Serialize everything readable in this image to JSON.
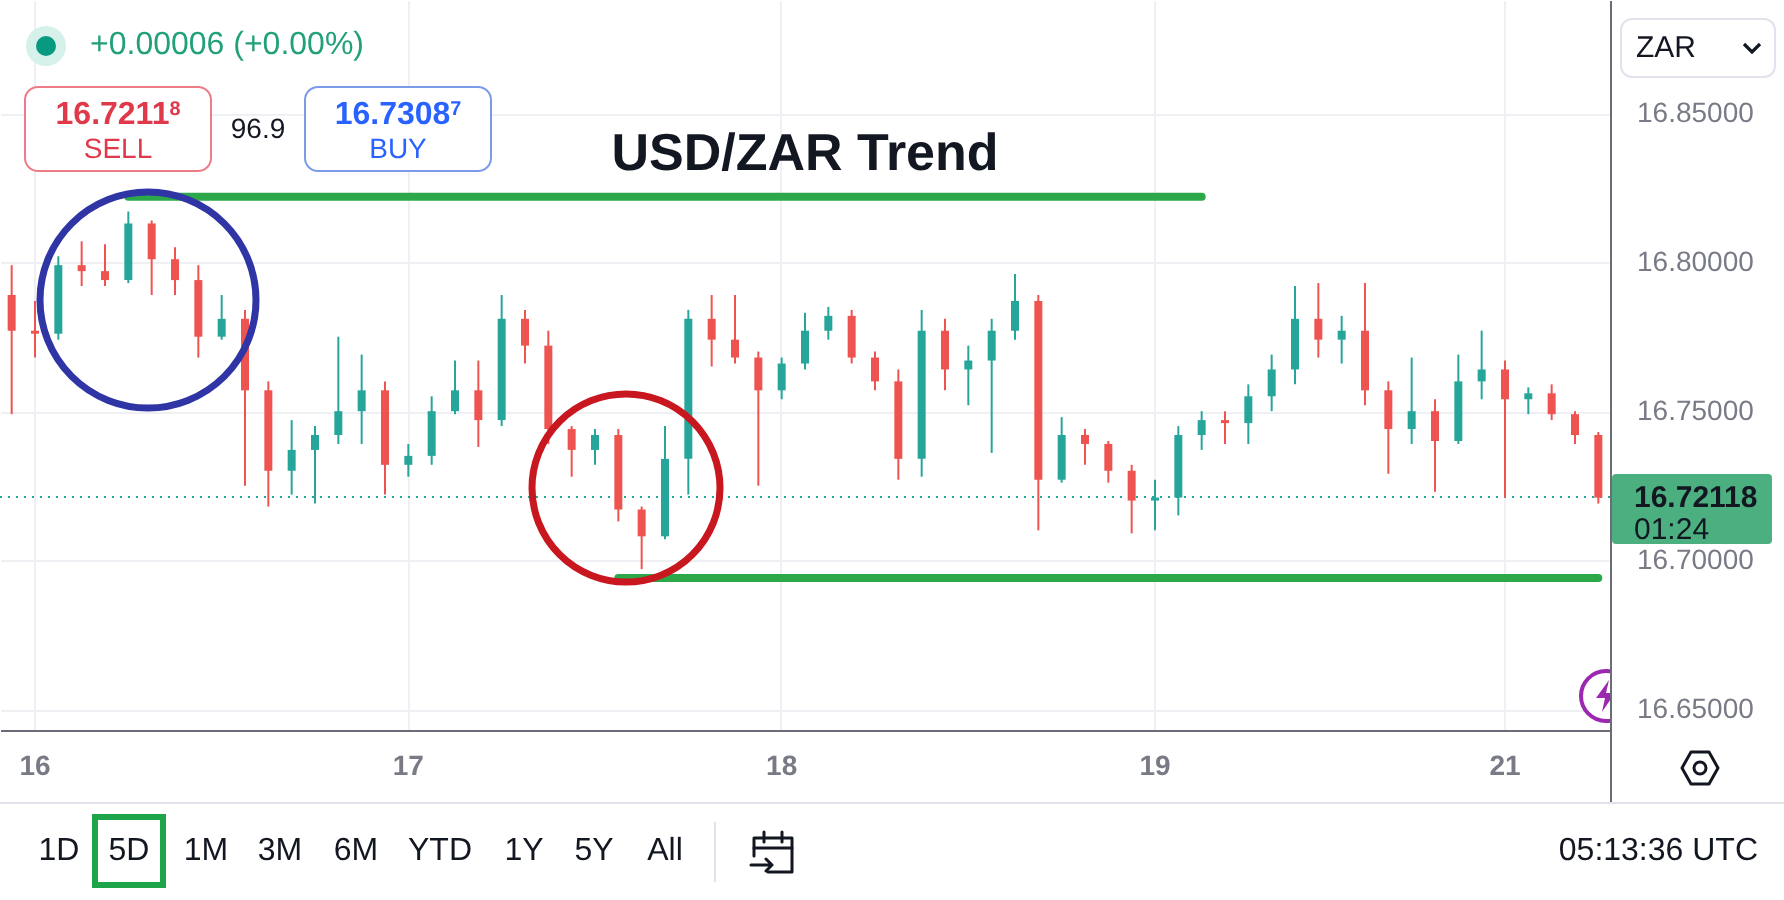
{
  "chart_data": {
    "type": "candlestick",
    "title": "USD/ZAR Trend",
    "categories": [
      null,
      "16",
      null,
      null,
      null,
      null,
      null,
      null,
      null,
      null,
      null,
      null,
      null,
      null,
      null,
      null,
      null,
      "17",
      null,
      null,
      null,
      null,
      null,
      null,
      null,
      null,
      null,
      null,
      null,
      null,
      null,
      null,
      null,
      "18",
      null,
      null,
      null,
      null,
      null,
      null,
      null,
      null,
      null,
      null,
      null,
      null,
      null,
      null,
      null,
      "19",
      null,
      null,
      null,
      null,
      null,
      null,
      null,
      null,
      null,
      null,
      null,
      null,
      null,
      null,
      "21",
      null,
      null,
      null,
      null
    ],
    "ohlc": [
      [
        16.789,
        16.799,
        16.749,
        16.777
      ],
      [
        16.777,
        16.787,
        16.768,
        16.776
      ],
      [
        16.776,
        16.802,
        16.774,
        16.799
      ],
      [
        16.799,
        16.807,
        16.792,
        16.797
      ],
      [
        16.797,
        16.806,
        16.792,
        16.794
      ],
      [
        16.794,
        16.817,
        16.793,
        16.813
      ],
      [
        16.813,
        16.814,
        16.789,
        16.801
      ],
      [
        16.801,
        16.805,
        16.789,
        16.794
      ],
      [
        16.794,
        16.799,
        16.768,
        16.775
      ],
      [
        16.775,
        16.789,
        16.774,
        16.781
      ],
      [
        16.781,
        16.784,
        16.725,
        16.757
      ],
      [
        16.757,
        16.76,
        16.718,
        16.73
      ],
      [
        16.73,
        16.747,
        16.722,
        16.737
      ],
      [
        16.737,
        16.745,
        16.719,
        16.742
      ],
      [
        16.742,
        16.775,
        16.739,
        16.75
      ],
      [
        16.75,
        16.769,
        16.739,
        16.757
      ],
      [
        16.757,
        16.76,
        16.722,
        16.732
      ],
      [
        16.732,
        16.739,
        16.728,
        16.735
      ],
      [
        16.735,
        16.755,
        16.732,
        16.75
      ],
      [
        16.75,
        16.767,
        16.749,
        16.757
      ],
      [
        16.757,
        16.767,
        16.738,
        16.747
      ],
      [
        16.747,
        16.789,
        16.745,
        16.781
      ],
      [
        16.781,
        16.784,
        16.766,
        16.772
      ],
      [
        16.772,
        16.777,
        16.739,
        16.744
      ],
      [
        16.744,
        16.745,
        16.728,
        16.737
      ],
      [
        16.737,
        16.744,
        16.732,
        16.742
      ],
      [
        16.742,
        16.744,
        16.713,
        16.717
      ],
      [
        16.717,
        16.718,
        16.697,
        16.708
      ],
      [
        16.708,
        16.745,
        16.707,
        16.734
      ],
      [
        16.734,
        16.784,
        16.722,
        16.781
      ],
      [
        16.781,
        16.789,
        16.765,
        16.774
      ],
      [
        16.774,
        16.789,
        16.766,
        16.768
      ],
      [
        16.768,
        16.77,
        16.725,
        16.757
      ],
      [
        16.757,
        16.768,
        16.754,
        16.766
      ],
      [
        16.766,
        16.783,
        16.764,
        16.777
      ],
      [
        16.777,
        16.785,
        16.774,
        16.782
      ],
      [
        16.782,
        16.784,
        16.766,
        16.768
      ],
      [
        16.768,
        16.77,
        16.757,
        16.76
      ],
      [
        16.76,
        16.764,
        16.727,
        16.734
      ],
      [
        16.734,
        16.784,
        16.728,
        16.777
      ],
      [
        16.777,
        16.781,
        16.757,
        16.764
      ],
      [
        16.764,
        16.772,
        16.752,
        16.767
      ],
      [
        16.767,
        16.781,
        16.736,
        16.777
      ],
      [
        16.777,
        16.796,
        16.774,
        16.787
      ],
      [
        16.787,
        16.789,
        16.71,
        16.727
      ],
      [
        16.727,
        16.748,
        16.726,
        16.742
      ],
      [
        16.742,
        16.744,
        16.732,
        16.739
      ],
      [
        16.739,
        16.74,
        16.726,
        16.73
      ],
      [
        16.73,
        16.732,
        16.709,
        16.72
      ],
      [
        16.72,
        16.727,
        16.71,
        16.721
      ],
      [
        16.721,
        16.745,
        16.715,
        16.742
      ],
      [
        16.742,
        16.75,
        16.737,
        16.747
      ],
      [
        16.747,
        16.75,
        16.739,
        16.746
      ],
      [
        16.746,
        16.759,
        16.739,
        16.755
      ],
      [
        16.755,
        16.769,
        16.75,
        16.764
      ],
      [
        16.764,
        16.792,
        16.759,
        16.781
      ],
      [
        16.781,
        16.793,
        16.768,
        16.774
      ],
      [
        16.774,
        16.782,
        16.766,
        16.777
      ],
      [
        16.777,
        16.793,
        16.752,
        16.757
      ],
      [
        16.757,
        16.76,
        16.729,
        16.744
      ],
      [
        16.744,
        16.768,
        16.739,
        16.75
      ],
      [
        16.75,
        16.754,
        16.723,
        16.74
      ],
      [
        16.74,
        16.769,
        16.739,
        16.76
      ],
      [
        16.76,
        16.777,
        16.754,
        16.764
      ],
      [
        16.764,
        16.767,
        16.721,
        16.754
      ],
      [
        16.754,
        16.758,
        16.749,
        16.756
      ],
      [
        16.756,
        16.759,
        16.747,
        16.749
      ],
      [
        16.749,
        16.75,
        16.739,
        16.742
      ],
      [
        16.742,
        16.743,
        16.719,
        16.721
      ]
    ],
    "colors": [
      "#ef5350",
      "#ef5350",
      "#26a69a",
      "#ef5350",
      "#ef5350",
      "#26a69a",
      "#ef5350",
      "#ef5350",
      "#ef5350",
      "#26a69a",
      "#ef5350",
      "#ef5350",
      "#26a69a",
      "#26a69a",
      "#26a69a",
      "#26a69a",
      "#ef5350",
      "#26a69a",
      "#26a69a",
      "#26a69a",
      "#ef5350",
      "#26a69a",
      "#ef5350",
      "#ef5350",
      "#ef5350",
      "#26a69a",
      "#ef5350",
      "#ef5350",
      "#26a69a",
      "#26a69a",
      "#ef5350",
      "#ef5350",
      "#ef5350",
      "#26a69a",
      "#26a69a",
      "#26a69a",
      "#ef5350",
      "#ef5350",
      "#ef5350",
      "#26a69a",
      "#ef5350",
      "#26a69a",
      "#26a69a",
      "#26a69a",
      "#ef5350",
      "#26a69a",
      "#ef5350",
      "#ef5350",
      "#ef5350",
      "#26a69a",
      "#26a69a",
      "#26a69a",
      "#ef5350",
      "#26a69a",
      "#26a69a",
      "#26a69a",
      "#ef5350",
      "#26a69a",
      "#ef5350",
      "#ef5350",
      "#26a69a",
      "#ef5350",
      "#26a69a",
      "#26a69a",
      "#ef5350",
      "#26a69a",
      "#ef5350",
      "#ef5350",
      "#ef5350"
    ],
    "series": [
      {
        "type": "line",
        "color": "#2ca84a",
        "values": [
          null,
          null,
          null,
          null,
          null,
          16.822,
          16.822,
          16.822,
          16.822,
          16.822,
          16.822,
          16.822,
          16.822,
          16.822,
          16.822,
          16.822,
          16.822,
          16.822,
          16.822,
          16.822,
          16.822,
          16.822,
          16.822,
          16.822,
          16.822,
          16.822,
          16.822,
          16.822,
          16.822,
          16.822,
          16.822,
          16.822,
          16.822,
          16.822,
          16.822,
          16.822,
          16.822,
          16.822,
          16.822,
          16.822,
          16.822,
          16.822,
          16.822,
          16.822,
          16.822,
          16.822,
          16.822,
          16.822,
          16.822,
          16.822,
          16.822,
          16.822,
          null,
          null,
          null,
          null,
          null,
          null,
          null,
          null,
          null,
          null,
          null,
          null,
          null,
          null,
          null,
          null,
          null
        ]
      },
      {
        "type": "line",
        "color": "#2ca84a",
        "values": [
          null,
          null,
          null,
          null,
          null,
          null,
          null,
          null,
          null,
          null,
          null,
          null,
          null,
          null,
          null,
          null,
          null,
          null,
          null,
          null,
          null,
          null,
          null,
          null,
          null,
          null,
          16.694,
          16.694,
          16.694,
          16.694,
          16.694,
          16.694,
          16.694,
          16.694,
          16.694,
          16.694,
          16.694,
          16.694,
          16.694,
          16.694,
          16.694,
          16.694,
          16.694,
          16.694,
          16.694,
          16.694,
          16.694,
          16.694,
          16.694,
          16.694,
          16.694,
          16.694,
          16.694,
          16.694,
          16.694,
          16.694,
          16.694,
          16.694,
          16.694,
          16.694,
          16.694,
          16.694,
          16.694,
          16.694,
          16.694,
          16.694,
          16.694,
          16.694,
          16.694
        ]
      }
    ],
    "ylim": [
      16.643,
      16.888
    ],
    "yticks": [
      {
        "value": 16.65,
        "label": "16.65000"
      },
      {
        "value": 16.7,
        "label": "16.70000"
      },
      {
        "value": 16.75,
        "label": "16.75000"
      },
      {
        "value": 16.8,
        "label": "16.80000"
      },
      {
        "value": 16.85,
        "label": "16.85000"
      }
    ],
    "grid": true,
    "ref_lines": [
      {
        "axis": "y",
        "value": 16.72118,
        "label": "16.72118",
        "color": "#26a69a",
        "line_style": "dotted"
      }
    ],
    "annotations": [
      "+0.00006 (+0.00%)",
      "16.7211$^{8}$",
      "SELL",
      "96.9",
      "16.7308$^{7}$",
      "BUY",
      "ZAR",
      "01:24",
      "1D",
      "5D",
      "1M",
      "3M",
      "6M",
      "YTD",
      "1Y",
      "5Y",
      "All",
      "05:13:36 UTC"
    ]
  }
}
